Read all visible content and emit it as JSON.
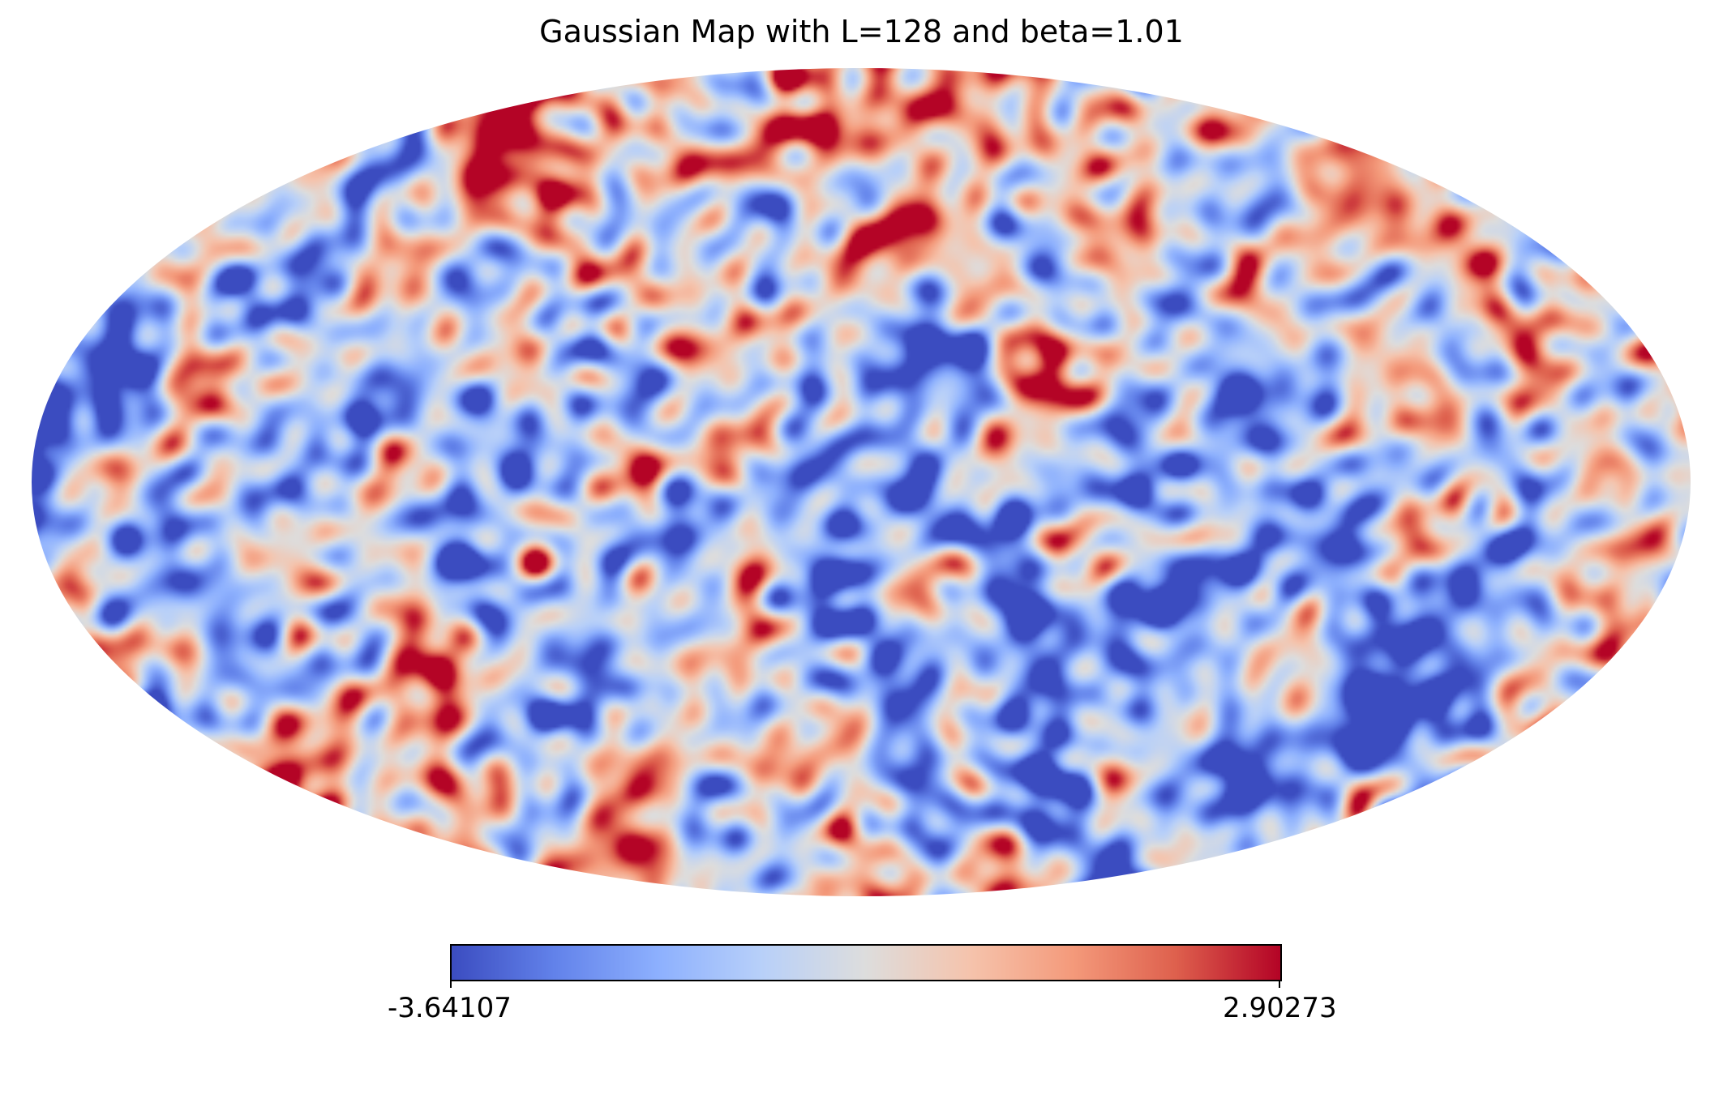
{
  "chart_data": {
    "type": "heatmap",
    "projection": "mollweide",
    "title": "Gaussian Map with L=128 and beta=1.01",
    "colormap": "coolwarm",
    "colorbar": {
      "min": -3.64107,
      "max": 2.90273,
      "min_label": "-3.64107",
      "max_label": "2.90273",
      "orientation": "horizontal",
      "placement": "bottom"
    },
    "value_range": [
      -3.64107,
      2.90273
    ],
    "grid": false
  }
}
